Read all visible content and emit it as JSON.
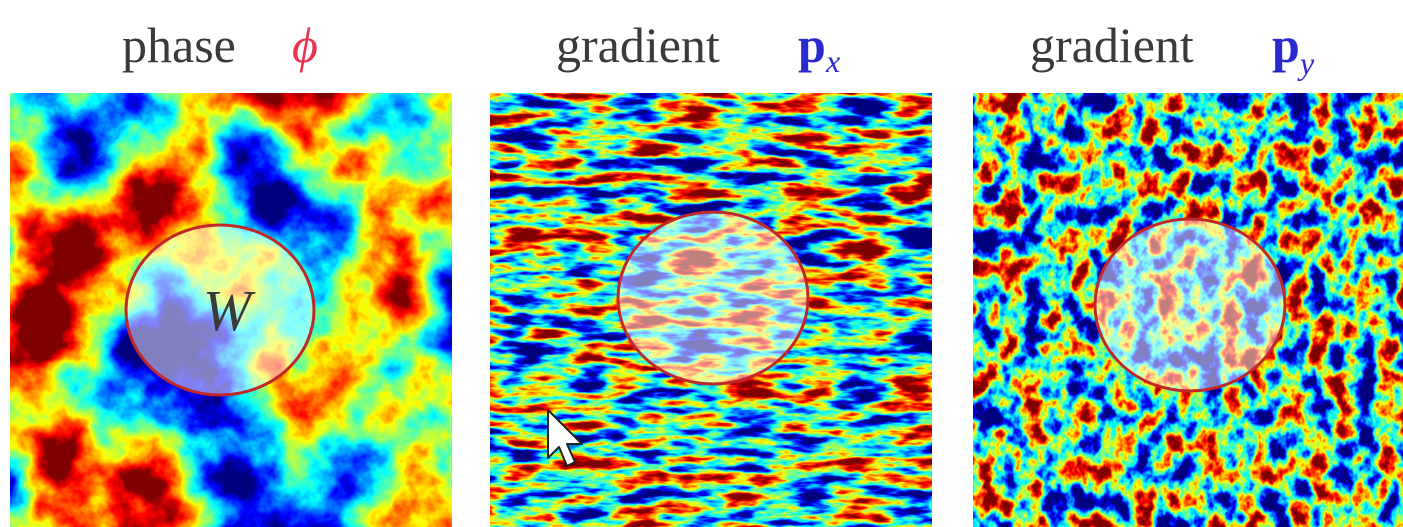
{
  "panels": [
    {
      "title": "phase",
      "symbol": "ϕ"
    },
    {
      "title": "gradient",
      "symbol": "p",
      "subscript": "x"
    },
    {
      "title": "gradient",
      "symbol": "p",
      "subscript": "y"
    }
  ],
  "window_label": "W"
}
